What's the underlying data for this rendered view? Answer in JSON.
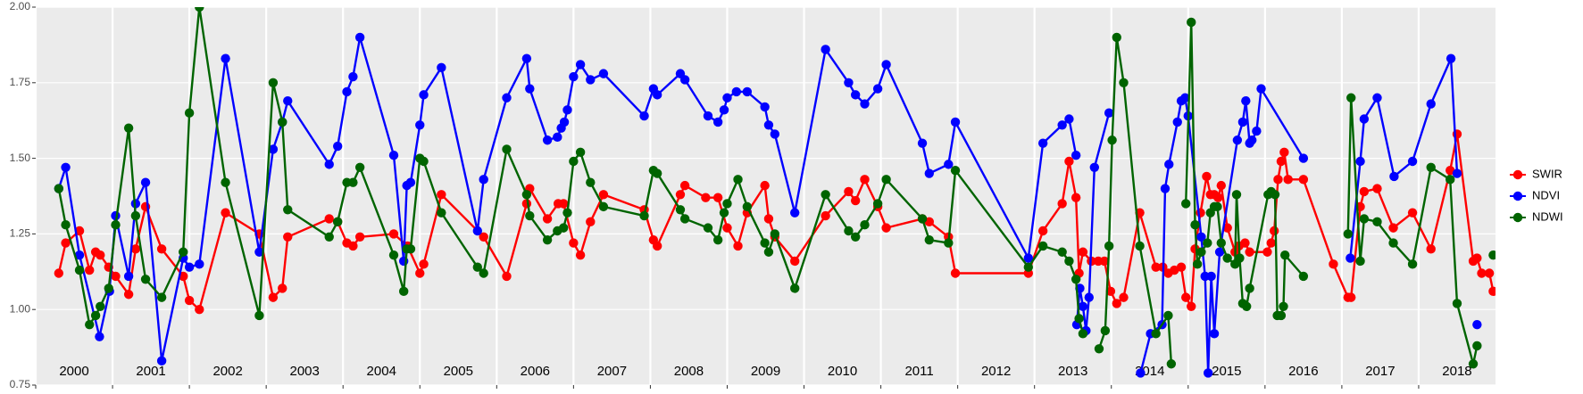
{
  "chart_data": {
    "type": "line",
    "xlim": [
      2000,
      2019
    ],
    "ylim": [
      0.75,
      2
    ],
    "xticks": [
      2000,
      2001,
      2002,
      2003,
      2004,
      2005,
      2006,
      2007,
      2008,
      2009,
      2010,
      2011,
      2012,
      2013,
      2014,
      2015,
      2016,
      2017,
      2018
    ],
    "yticks": [
      0.75,
      {
        "value": 1,
        "label": "1.00"
      },
      1.25,
      {
        "value": 1.5,
        "label": "1.50"
      },
      1.75,
      {
        "value": 2,
        "label": "2.00"
      }
    ],
    "grid": true,
    "legend": "right",
    "series": [
      {
        "name": "SWIR",
        "color": "#ff0000",
        "x": [
          2000.3,
          2000.39,
          2000.57,
          2000.7,
          2000.78,
          2000.84,
          2000.95,
          2001.04,
          2001.21,
          2001.3,
          2001.43,
          2001.64,
          2001.92,
          2002.0,
          2002.13,
          2002.47,
          2002.91,
          2003.09,
          2003.21,
          2003.28,
          2003.82,
          2003.93,
          2004.05,
          2004.13,
          2004.22,
          2004.66,
          2004.84,
          2005.0,
          2005.05,
          2005.28,
          2005.83,
          2006.13,
          2006.39,
          2006.43,
          2006.66,
          2006.8,
          2006.87,
          2007.0,
          2007.09,
          2007.22,
          2007.39,
          2007.92,
          2008.04,
          2008.09,
          2008.39,
          2008.45,
          2008.72,
          2008.88,
          2009.0,
          2009.14,
          2009.26,
          2009.49,
          2009.54,
          2009.62,
          2009.88,
          2010.28,
          2010.58,
          2010.67,
          2010.79,
          2010.96,
          2011.07,
          2011.54,
          2011.63,
          2011.88,
          2011.97,
          2012.92,
          2013.11,
          2013.36,
          2013.45,
          2013.54,
          2013.58,
          2013.63,
          2013.74,
          2013.83,
          2013.91,
          2013.99,
          2014.07,
          2014.16,
          2014.37,
          2014.58,
          2014.67,
          2014.74,
          2014.82,
          2014.91,
          2014.97,
          2015.04,
          2015.09,
          2015.16,
          2015.24,
          2015.29,
          2015.34,
          2015.39,
          2015.43,
          2015.51,
          2015.61,
          2015.66,
          2015.74,
          2015.8,
          2016.03,
          2016.08,
          2016.12,
          2016.17,
          2016.21,
          2016.25,
          2016.3,
          2016.5,
          2016.89,
          2017.08,
          2017.12,
          2017.24,
          2017.29,
          2017.46,
          2017.67,
          2017.92,
          2018.16,
          2018.41,
          2018.5,
          2018.71,
          2018.76,
          2018.82,
          2018.92,
          2018.97
        ],
        "values": [
          1.12,
          1.22,
          1.26,
          1.13,
          1.19,
          1.18,
          1.14,
          1.11,
          1.05,
          1.2,
          1.34,
          1.2,
          1.11,
          1.03,
          1.0,
          1.32,
          1.25,
          1.04,
          1.07,
          1.24,
          1.3,
          1.29,
          1.22,
          1.21,
          1.24,
          1.25,
          1.21,
          1.12,
          1.15,
          1.38,
          1.24,
          1.11,
          1.35,
          1.4,
          1.3,
          1.35,
          1.35,
          1.22,
          1.18,
          1.29,
          1.38,
          1.33,
          1.23,
          1.21,
          1.38,
          1.41,
          1.37,
          1.37,
          1.27,
          1.21,
          1.32,
          1.41,
          1.3,
          1.24,
          1.16,
          1.31,
          1.39,
          1.36,
          1.43,
          1.34,
          1.27,
          1.3,
          1.29,
          1.24,
          1.12,
          1.12,
          1.26,
          1.35,
          1.49,
          1.37,
          1.12,
          1.19,
          1.16,
          1.16,
          1.16,
          1.06,
          1.02,
          1.04,
          1.32,
          1.14,
          1.14,
          1.12,
          1.13,
          1.14,
          1.04,
          1.01,
          1.2,
          1.32,
          1.44,
          1.38,
          1.38,
          1.37,
          1.41,
          1.27,
          1.19,
          1.21,
          1.22,
          1.19,
          1.19,
          1.22,
          1.26,
          1.43,
          1.49,
          1.52,
          1.43,
          1.43,
          1.15,
          1.04,
          1.04,
          1.34,
          1.39,
          1.4,
          1.27,
          1.32,
          1.2,
          1.46,
          1.58,
          1.16,
          1.17,
          1.12,
          1.12,
          1.06
        ]
      },
      {
        "name": "NDVI",
        "color": "#0000ff",
        "x": [
          2000.3,
          2000.39,
          2000.57,
          2000.83,
          2000.96,
          2001.04,
          2001.21,
          2001.3,
          2001.43,
          2001.64,
          2001.92,
          2002.0,
          2002.13,
          2002.47,
          2002.91,
          2003.09,
          2003.21,
          2003.28,
          2003.82,
          2003.93,
          2004.05,
          2004.13,
          2004.22,
          2004.66,
          2004.79,
          2004.83,
          2004.88,
          2005.0,
          2005.05,
          2005.28,
          2005.75,
          2005.83,
          2006.13,
          2006.39,
          2006.43,
          2006.66,
          2006.79,
          2006.84,
          2006.88,
          2006.92,
          2007.0,
          2007.09,
          2007.22,
          2007.39,
          2007.92,
          2008.04,
          2008.09,
          2008.39,
          2008.45,
          2008.75,
          2008.88,
          2008.96,
          2009.0,
          2009.12,
          2009.26,
          2009.49,
          2009.54,
          2009.62,
          2009.88,
          2010.28,
          2010.58,
          2010.67,
          2010.79,
          2010.96,
          2011.07,
          2011.54,
          2011.63,
          2011.88,
          2011.97,
          2012.92,
          2013.11,
          2013.36,
          2013.45,
          2013.54,
          null,
          2013.55,
          2013.59,
          2013.63,
          2013.67,
          2013.71,
          2013.78,
          2013.97,
          null,
          2014.38,
          2014.51,
          2014.66,
          2014.7,
          2014.75,
          2014.86,
          2014.91,
          2014.96,
          2015.0,
          2015.17,
          2015.22,
          2015.26,
          2015.3,
          2015.34,
          2015.41,
          2015.64,
          2015.71,
          2015.75,
          2015.8,
          2015.83,
          2015.89,
          2015.95,
          2016.5,
          null,
          2017.11,
          2017.24,
          2017.29,
          2017.46,
          2017.68,
          2017.92,
          2018.16,
          2018.42,
          2018.5,
          null,
          2018.76
        ],
        "values": [
          1.4,
          1.47,
          1.18,
          0.91,
          1.06,
          1.31,
          1.11,
          1.35,
          1.42,
          0.83,
          1.17,
          1.14,
          1.15,
          1.83,
          1.19,
          1.53,
          1.62,
          1.69,
          1.48,
          1.54,
          1.72,
          1.77,
          1.9,
          1.51,
          1.16,
          1.41,
          1.42,
          1.61,
          1.71,
          1.8,
          1.26,
          1.43,
          1.7,
          1.83,
          1.73,
          1.56,
          1.57,
          1.6,
          1.62,
          1.66,
          1.77,
          1.81,
          1.76,
          1.78,
          1.64,
          1.73,
          1.71,
          1.78,
          1.76,
          1.64,
          1.62,
          1.66,
          1.7,
          1.72,
          1.72,
          1.67,
          1.61,
          1.58,
          1.32,
          1.86,
          1.75,
          1.71,
          1.68,
          1.73,
          1.81,
          1.55,
          1.45,
          1.48,
          1.62,
          1.17,
          1.55,
          1.61,
          1.63,
          1.51,
          null,
          0.95,
          1.07,
          1.01,
          0.93,
          1.04,
          1.47,
          1.65,
          null,
          0.79,
          0.92,
          0.95,
          1.4,
          1.48,
          1.62,
          1.69,
          1.7,
          1.64,
          1.24,
          1.11,
          0.79,
          1.11,
          0.92,
          1.19,
          1.56,
          1.62,
          1.69,
          1.55,
          1.56,
          1.59,
          1.73,
          1.5,
          null,
          1.17,
          1.49,
          1.63,
          1.7,
          1.44,
          1.49,
          1.68,
          1.83,
          1.45,
          null,
          0.95
        ]
      },
      {
        "name": "NDWI",
        "color": "#006400",
        "x": [
          2000.3,
          2000.39,
          2000.57,
          2000.7,
          2000.78,
          2000.84,
          2000.95,
          2001.04,
          2001.21,
          2001.3,
          2001.43,
          2001.64,
          2001.92,
          2002.0,
          2002.13,
          2002.47,
          2002.91,
          2003.09,
          2003.21,
          2003.28,
          2003.82,
          2003.93,
          2004.05,
          2004.13,
          2004.22,
          2004.66,
          2004.79,
          2004.83,
          2004.88,
          2005.0,
          2005.05,
          2005.28,
          2005.75,
          2005.83,
          2006.13,
          2006.39,
          2006.43,
          2006.66,
          2006.79,
          2006.87,
          2006.92,
          2007.0,
          2007.09,
          2007.22,
          2007.39,
          2007.92,
          2008.04,
          2008.09,
          2008.39,
          2008.45,
          2008.75,
          2008.88,
          2008.96,
          2009.0,
          2009.14,
          2009.26,
          2009.49,
          2009.54,
          2009.62,
          2009.88,
          2010.28,
          2010.58,
          2010.67,
          2010.79,
          2010.96,
          2011.07,
          2011.54,
          2011.63,
          2011.88,
          2011.97,
          2012.92,
          2013.11,
          2013.36,
          2013.45,
          2013.54,
          2013.58,
          2013.63,
          null,
          2013.84,
          2013.92,
          2013.97,
          2014.01,
          2014.07,
          2014.16,
          2014.37,
          2014.58,
          2014.74,
          2014.78,
          null,
          2014.97,
          2015.04,
          2015.09,
          2015.12,
          2015.17,
          2015.25,
          2015.29,
          2015.34,
          2015.38,
          2015.43,
          2015.51,
          2015.61,
          2015.63,
          2015.67,
          2015.71,
          2015.76,
          2015.8,
          2016.04,
          2016.08,
          2016.13,
          2016.16,
          2016.21,
          2016.24,
          2016.26,
          2016.5,
          null,
          2017.08,
          2017.12,
          2017.24,
          2017.29,
          2017.46,
          2017.67,
          2017.92,
          2018.16,
          2018.41,
          2018.5,
          2018.71,
          2018.76,
          null,
          2018.97
        ],
        "values": [
          1.4,
          1.28,
          1.13,
          0.95,
          0.98,
          1.01,
          1.07,
          1.28,
          1.6,
          1.31,
          1.1,
          1.04,
          1.19,
          1.65,
          2.0,
          1.42,
          0.98,
          1.75,
          1.62,
          1.33,
          1.24,
          1.29,
          1.42,
          1.42,
          1.47,
          1.18,
          1.06,
          1.2,
          1.2,
          1.5,
          1.49,
          1.32,
          1.14,
          1.12,
          1.53,
          1.38,
          1.31,
          1.23,
          1.26,
          1.27,
          1.32,
          1.49,
          1.52,
          1.42,
          1.34,
          1.31,
          1.46,
          1.45,
          1.33,
          1.3,
          1.27,
          1.23,
          1.32,
          1.35,
          1.43,
          1.34,
          1.22,
          1.19,
          1.25,
          1.07,
          1.38,
          1.26,
          1.24,
          1.28,
          1.35,
          1.43,
          1.3,
          1.23,
          1.22,
          1.46,
          1.14,
          1.21,
          1.19,
          1.16,
          1.1,
          0.97,
          0.92,
          null,
          0.87,
          0.93,
          1.21,
          1.56,
          1.9,
          1.75,
          1.21,
          0.92,
          0.98,
          0.82,
          null,
          1.35,
          1.95,
          1.28,
          1.15,
          1.19,
          1.22,
          1.32,
          1.34,
          1.34,
          1.22,
          1.17,
          1.15,
          1.38,
          1.17,
          1.02,
          1.01,
          1.07,
          1.38,
          1.39,
          1.38,
          0.98,
          0.98,
          1.01,
          1.18,
          1.11,
          null,
          1.25,
          1.7,
          1.16,
          1.3,
          1.29,
          1.22,
          1.15,
          1.47,
          1.43,
          1.02,
          0.82,
          0.88,
          null,
          1.18
        ]
      }
    ]
  }
}
